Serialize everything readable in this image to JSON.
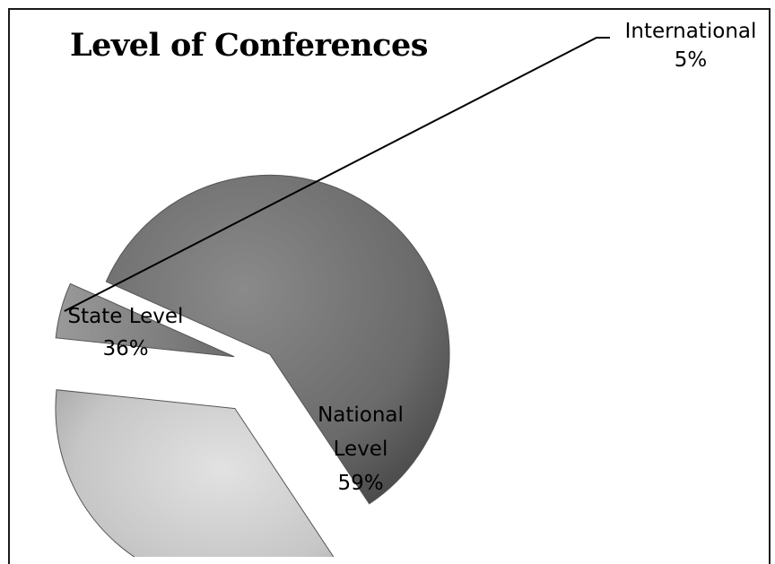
{
  "chart_data": {
    "type": "pie",
    "title": "Level of Conferences",
    "categories": [
      "International",
      "National Level",
      "State Level"
    ],
    "values": [
      5,
      59,
      36
    ],
    "labels": [
      [
        "International",
        "5%"
      ],
      [
        "National",
        "Level",
        "59%"
      ],
      [
        "State Level",
        "36%"
      ]
    ],
    "legend": "none",
    "exploded": true,
    "colors": [
      "#7d7d7d",
      "#6e6e6e",
      "#c8c8c8"
    ]
  }
}
